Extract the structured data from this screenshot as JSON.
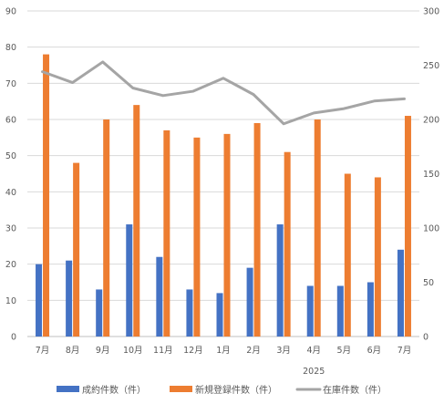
{
  "chart_data": {
    "type": "bar",
    "categories": [
      "7月",
      "8月",
      "9月",
      "10月",
      "11月",
      "12月",
      "1月",
      "2月",
      "3月",
      "4月",
      "5月",
      "6月",
      "7月"
    ],
    "year_label": "2025",
    "year_label_under_index": 9,
    "y_left": {
      "min": 0,
      "max": 90,
      "step": 10
    },
    "y_right": {
      "min": 0,
      "max": 300,
      "step": 50
    },
    "grid": true,
    "legend_position": "bottom",
    "series": [
      {
        "name": "成約件数（件）",
        "kind": "bar",
        "axis": "left",
        "color": "#4472c4",
        "values": [
          20,
          21,
          13,
          31,
          22,
          13,
          12,
          19,
          31,
          14,
          14,
          15,
          24
        ]
      },
      {
        "name": "新規登録件数（件）",
        "kind": "bar",
        "axis": "left",
        "color": "#ed7d31",
        "values": [
          78,
          48,
          60,
          64,
          57,
          55,
          56,
          59,
          51,
          60,
          45,
          44,
          61
        ]
      },
      {
        "name": "在庫件数（件）",
        "kind": "line",
        "axis": "right",
        "color": "#a5a5a5",
        "values": [
          244,
          234,
          253,
          229,
          222,
          226,
          238,
          223,
          196,
          206,
          210,
          217,
          219
        ]
      }
    ]
  }
}
